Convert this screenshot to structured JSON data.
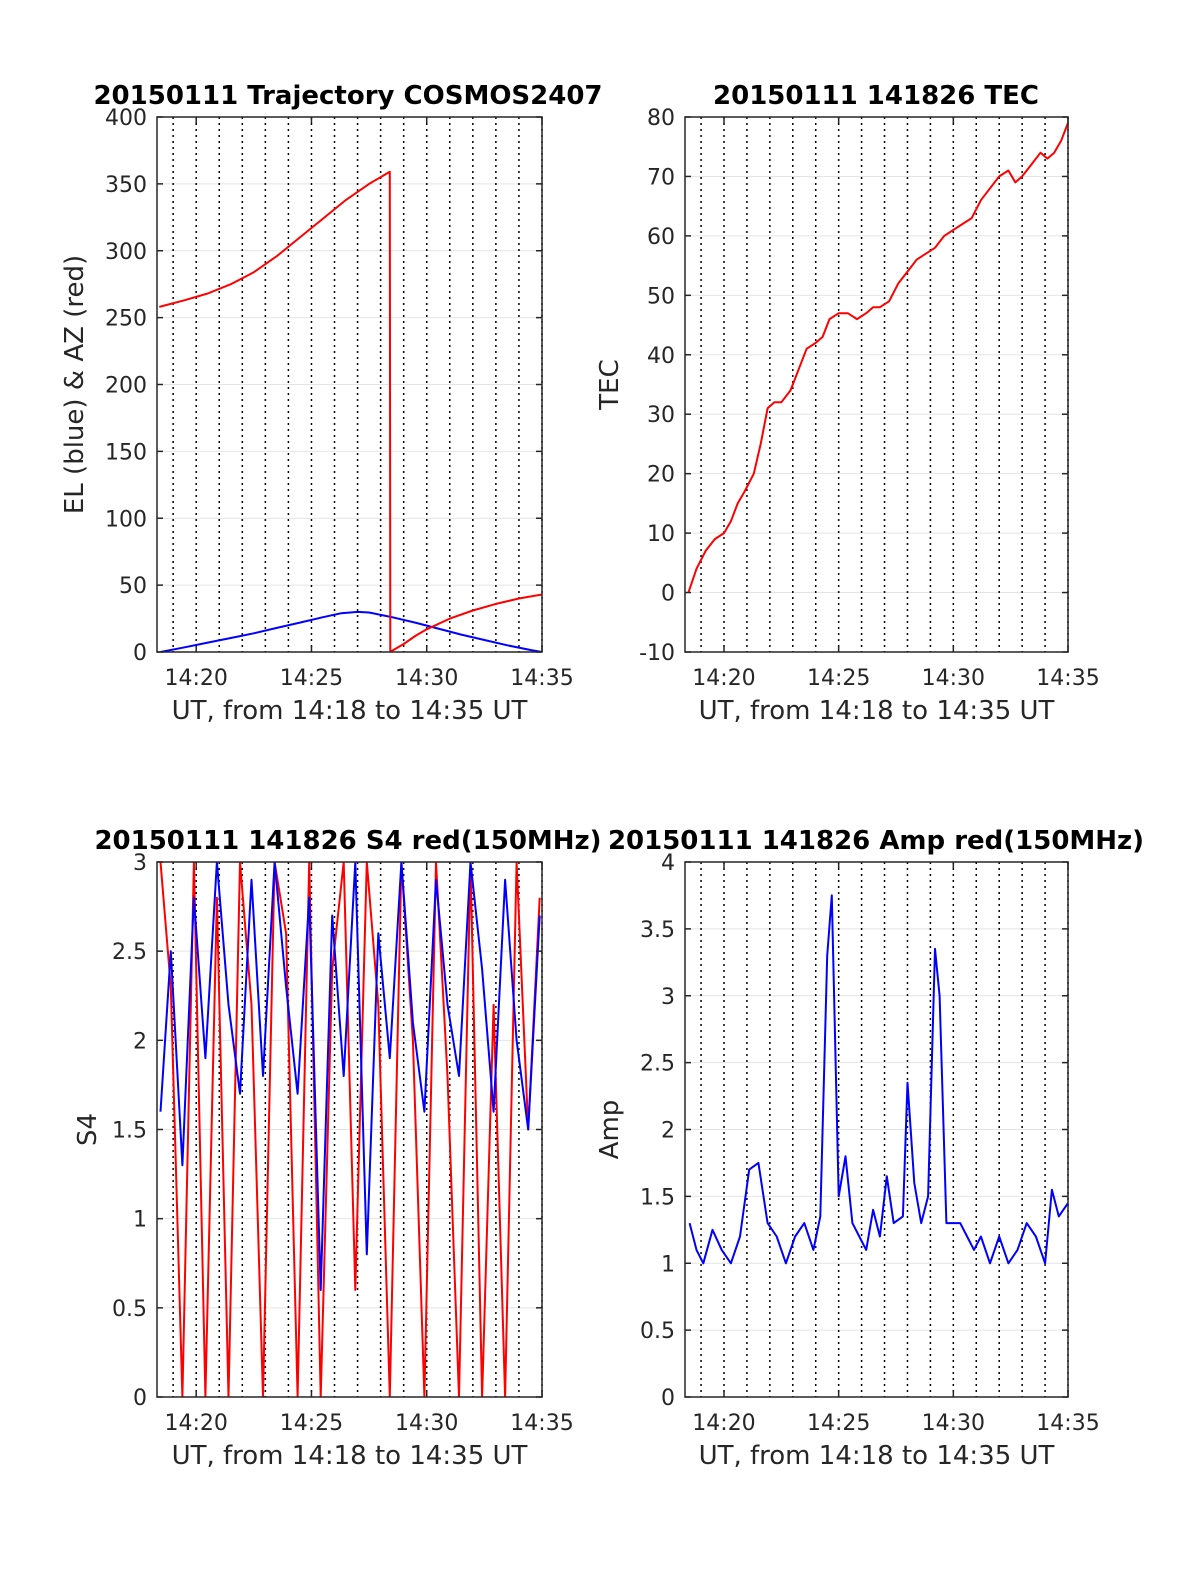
{
  "chart_data": [
    {
      "type": "line",
      "title": "20150111 Trajectory COSMOS2407",
      "xlabel": "UT, from 14:18 to 14:35 UT",
      "ylabel": "EL (blue) & AZ (red)",
      "xlim": [
        18.3,
        35
      ],
      "ylim": [
        0,
        400
      ],
      "x_ticks": [
        20,
        25,
        30,
        35
      ],
      "x_tick_labels": [
        "14:20",
        "14:25",
        "14:30",
        "14:35"
      ],
      "y_ticks": [
        0,
        50,
        100,
        150,
        200,
        250,
        300,
        350,
        400
      ],
      "y_tick_labels": [
        "0",
        "50",
        "100",
        "150",
        "200",
        "250",
        "300",
        "350",
        "400"
      ],
      "grid": "dotted vertical lines every minute, light horizontal lines",
      "series": [
        {
          "color": "#0000ff",
          "x": [
            18.45,
            19.5,
            20.5,
            21.5,
            22.5,
            23.5,
            24.5,
            25.5,
            26.3,
            27.0,
            27.5,
            28.5,
            29.5,
            30.5,
            31.5,
            32.5,
            33.5,
            34.5,
            35.0
          ],
          "y": [
            0,
            3.5,
            7,
            10.5,
            14,
            18,
            22,
            26,
            29,
            30,
            29.5,
            26,
            22,
            17.5,
            13,
            9,
            5,
            1.5,
            0
          ]
        },
        {
          "color": "#ff0000",
          "x": [
            18.4,
            19.5,
            20.5,
            21.5,
            22.5,
            23.5,
            24.5,
            25.5,
            26.5,
            27.5,
            28.4,
            28.42,
            28.5,
            29.0,
            29.5,
            30.0,
            31.0,
            32.0,
            33.0,
            34.0,
            35.0
          ],
          "y": [
            258,
            263,
            268,
            275,
            284,
            296,
            310,
            324,
            338,
            350,
            359,
            0,
            1,
            6,
            12,
            17,
            25,
            31,
            36,
            40,
            43
          ]
        }
      ]
    },
    {
      "type": "line",
      "title": "20150111 141826 TEC",
      "xlabel": "UT, from 14:18 to 14:35 UT",
      "ylabel": "TEC",
      "xlim": [
        18.3,
        35
      ],
      "ylim": [
        -10,
        80
      ],
      "x_ticks": [
        20,
        25,
        30,
        35
      ],
      "x_tick_labels": [
        "14:20",
        "14:25",
        "14:30",
        "14:35"
      ],
      "y_ticks": [
        -10,
        0,
        10,
        20,
        30,
        40,
        50,
        60,
        70,
        80
      ],
      "y_tick_labels": [
        "-10",
        "0",
        "10",
        "20",
        "30",
        "40",
        "50",
        "60",
        "70",
        "80"
      ],
      "grid": "dotted vertical lines every minute, light horizontal lines",
      "series": [
        {
          "color": "#ff0000",
          "x": [
            18.45,
            18.8,
            19.2,
            19.6,
            20.0,
            20.3,
            20.6,
            20.9,
            21.3,
            21.6,
            21.9,
            22.2,
            22.5,
            22.9,
            23.3,
            23.6,
            24.0,
            24.3,
            24.6,
            25.0,
            25.4,
            25.8,
            26.2,
            26.5,
            26.8,
            27.2,
            27.6,
            28.0,
            28.4,
            28.8,
            29.2,
            29.6,
            30.0,
            30.4,
            30.8,
            31.2,
            31.6,
            32.0,
            32.4,
            32.7,
            33.0,
            33.4,
            33.8,
            34.1,
            34.4,
            34.7,
            35.0
          ],
          "y": [
            0,
            4,
            7,
            9,
            10,
            12,
            15,
            17,
            20,
            25,
            31,
            32,
            32,
            34,
            38,
            41,
            42,
            43,
            46,
            47,
            47,
            46,
            47,
            48,
            48,
            49,
            52,
            54,
            56,
            57,
            58,
            60,
            61,
            62,
            63,
            66,
            68,
            70,
            71,
            69,
            70,
            72,
            74,
            73,
            74,
            76,
            79
          ]
        }
      ]
    },
    {
      "type": "line",
      "title": "20150111 141826 S4 red(150MHz)",
      "xlabel": "UT, from 14:18 to 14:35 UT",
      "ylabel": "S4",
      "xlim": [
        18.3,
        35
      ],
      "ylim": [
        0,
        3
      ],
      "x_ticks": [
        20,
        25,
        30,
        35
      ],
      "x_tick_labels": [
        "14:20",
        "14:25",
        "14:30",
        "14:35"
      ],
      "y_ticks": [
        0,
        0.5,
        1,
        1.5,
        2,
        2.5,
        3
      ],
      "y_tick_labels": [
        "0",
        "0.5",
        "1",
        "1.5",
        "2",
        "2.5",
        "3"
      ],
      "grid": "dotted vertical lines every minute, light horizontal lines",
      "series": [
        {
          "color": "#ff0000",
          "x": [
            18.45,
            18.9,
            19.4,
            19.9,
            20.4,
            20.9,
            21.4,
            21.9,
            22.4,
            22.9,
            23.4,
            23.9,
            24.4,
            24.9,
            25.4,
            25.9,
            26.4,
            26.9,
            27.4,
            27.9,
            28.4,
            28.9,
            29.4,
            29.9,
            30.4,
            30.9,
            31.4,
            31.9,
            32.4,
            32.9,
            33.4,
            33.9,
            34.4,
            34.9
          ],
          "y": [
            3,
            2.3,
            0,
            3,
            0,
            2.8,
            0,
            3,
            2.2,
            0,
            3,
            2.6,
            0,
            3,
            0,
            2.4,
            3,
            0.6,
            3,
            2.2,
            0,
            3,
            2.0,
            0,
            3,
            1.8,
            0,
            3,
            0,
            2.2,
            0,
            3,
            1.5,
            2.8
          ]
        },
        {
          "color": "#0000ff",
          "x": [
            18.45,
            18.9,
            19.4,
            19.9,
            20.4,
            20.9,
            21.4,
            21.9,
            22.4,
            22.9,
            23.4,
            23.9,
            24.4,
            24.9,
            25.4,
            25.9,
            26.4,
            26.9,
            27.4,
            27.9,
            28.4,
            28.9,
            29.4,
            29.9,
            30.4,
            30.9,
            31.4,
            31.9,
            32.4,
            32.9,
            33.4,
            33.9,
            34.4,
            34.9
          ],
          "y": [
            1.6,
            2.5,
            1.3,
            2.8,
            1.9,
            3,
            2.2,
            1.7,
            2.9,
            1.8,
            3,
            2.3,
            1.7,
            2.8,
            0.6,
            2.7,
            1.8,
            3,
            0.8,
            2.6,
            1.9,
            3,
            2.1,
            1.6,
            2.9,
            2.2,
            1.8,
            3,
            2.4,
            1.6,
            2.9,
            2.0,
            1.5,
            2.7
          ]
        }
      ]
    },
    {
      "type": "line",
      "title": "20150111 141826 Amp red(150MHz)",
      "xlabel": "UT, from 14:18 to 14:35 UT",
      "ylabel": "Amp",
      "xlim": [
        18.3,
        35
      ],
      "ylim": [
        0,
        4
      ],
      "x_ticks": [
        20,
        25,
        30,
        35
      ],
      "x_tick_labels": [
        "14:20",
        "14:25",
        "14:30",
        "14:35"
      ],
      "y_ticks": [
        0,
        0.5,
        1,
        1.5,
        2,
        2.5,
        3,
        3.5,
        4
      ],
      "y_tick_labels": [
        "0",
        "0.5",
        "1",
        "1.5",
        "2",
        "2.5",
        "3",
        "3.5",
        "4"
      ],
      "grid": "dotted vertical lines every minute, light horizontal lines",
      "series": [
        {
          "color": "#0000ff",
          "x": [
            18.5,
            18.8,
            19.1,
            19.5,
            19.9,
            20.3,
            20.7,
            21.1,
            21.5,
            21.9,
            22.3,
            22.7,
            23.1,
            23.5,
            23.9,
            24.2,
            24.5,
            24.7,
            25.0,
            25.3,
            25.6,
            25.9,
            26.2,
            26.5,
            26.8,
            27.1,
            27.4,
            27.8,
            28.0,
            28.3,
            28.6,
            28.9,
            29.2,
            29.4,
            29.7,
            30.0,
            30.3,
            30.6,
            30.9,
            31.2,
            31.6,
            32.0,
            32.4,
            32.8,
            33.2,
            33.6,
            34.0,
            34.3,
            34.6,
            35.0
          ],
          "y": [
            1.3,
            1.1,
            1.0,
            1.25,
            1.1,
            1.0,
            1.2,
            1.7,
            1.75,
            1.3,
            1.2,
            1.0,
            1.2,
            1.3,
            1.1,
            1.35,
            3.3,
            3.75,
            1.5,
            1.8,
            1.3,
            1.2,
            1.1,
            1.4,
            1.2,
            1.65,
            1.3,
            1.35,
            2.35,
            1.6,
            1.3,
            1.5,
            3.35,
            3.0,
            1.3,
            1.3,
            1.3,
            1.2,
            1.1,
            1.2,
            1.0,
            1.2,
            1.0,
            1.1,
            1.3,
            1.2,
            1.0,
            1.55,
            1.35,
            1.45
          ]
        }
      ]
    }
  ]
}
